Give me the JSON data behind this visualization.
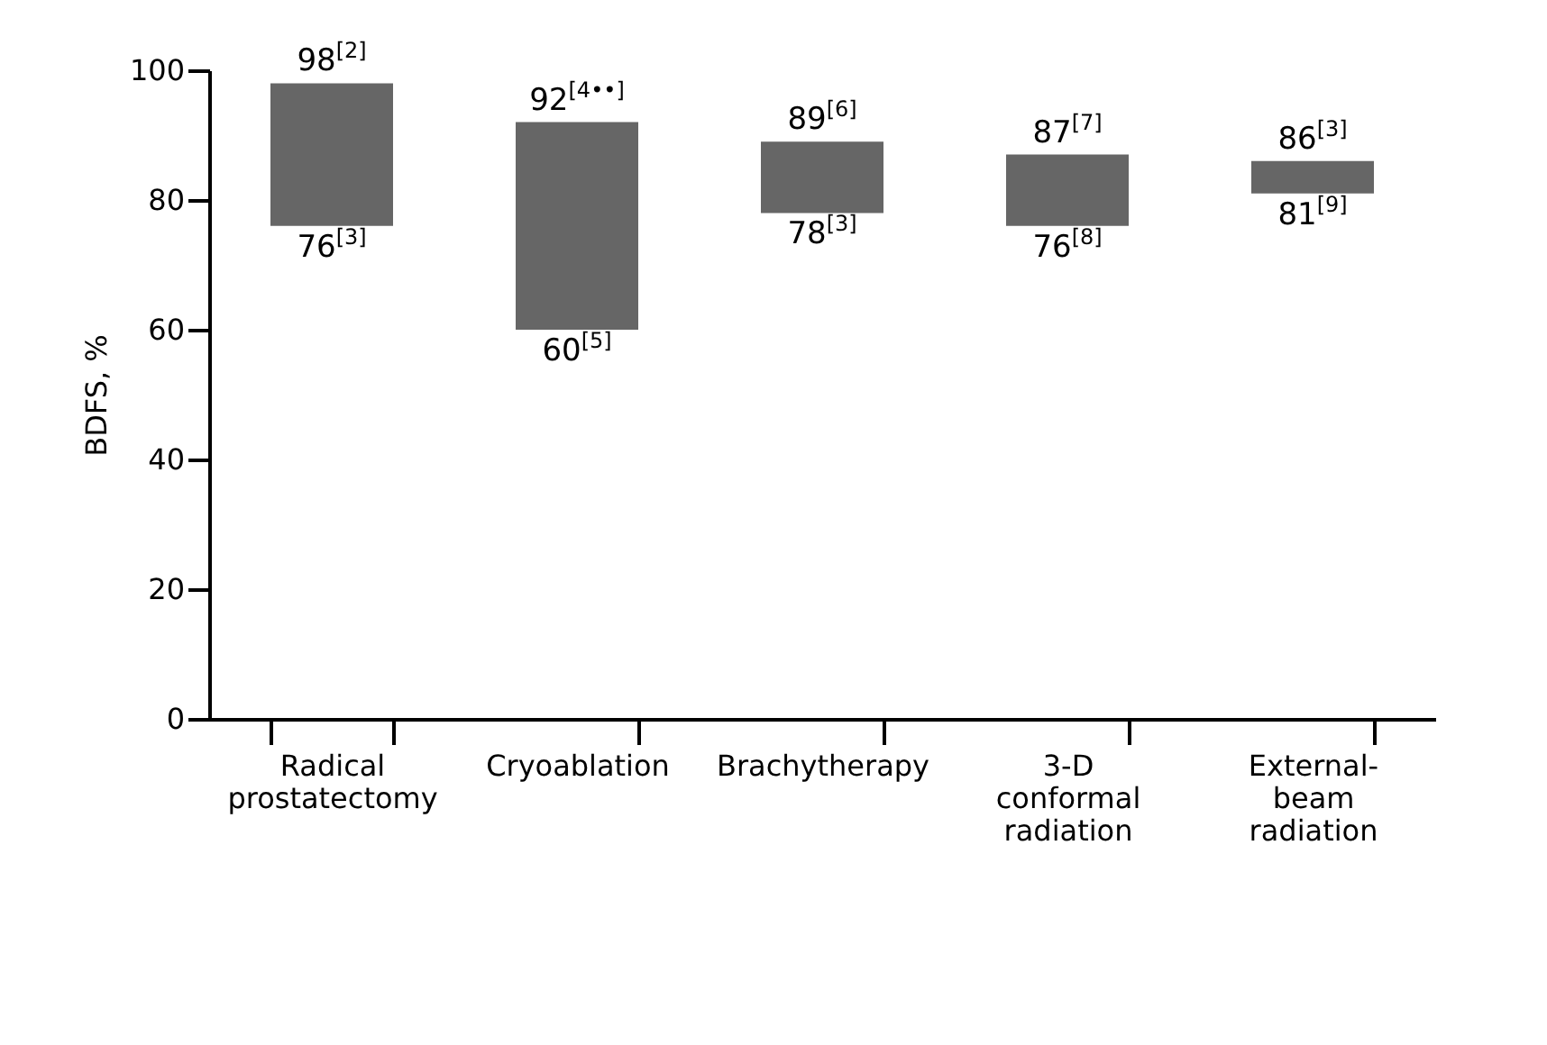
{
  "chart_data": {
    "type": "bar",
    "ylabel": "BDFS, %",
    "categories": [
      "Radical prostatectomy",
      "Cryoablation",
      "Brachytherapy",
      "3-D conformal radiation",
      "External-beam radiation"
    ],
    "base": [
      76,
      60,
      78,
      76,
      81
    ],
    "values": [
      22,
      32,
      11,
      11,
      5
    ],
    "color": "#666666",
    "ylim": [
      0,
      100
    ],
    "yticks": [
      0,
      20,
      40,
      60,
      80,
      100
    ],
    "grid": false,
    "annotations": [
      {
        "text": "98$^{[2]}$",
        "x": "Radical prostatectomy",
        "y": 98
      },
      {
        "text": "76$^{[3]}$",
        "x": "Radical prostatectomy",
        "y": 76
      },
      {
        "text": "92$^{[4••]}$",
        "x": "Cryoablation",
        "y": 92
      },
      {
        "text": "60$^{[5]}$",
        "x": "Cryoablation",
        "y": 60
      },
      {
        "text": "89$^{[6]}$",
        "x": "Brachytherapy",
        "y": 89
      },
      {
        "text": "78$^{[3]}$",
        "x": "Brachytherapy",
        "y": 78
      },
      {
        "text": "87$^{[7]}$",
        "x": "3-D conformal radiation",
        "y": 87
      },
      {
        "text": "76$^{[8]}$",
        "x": "3-D conformal radiation",
        "y": 76
      },
      {
        "text": "86$^{[3]}$",
        "x": "External-beam radiation",
        "y": 86
      },
      {
        "text": "81$^{[9]}$",
        "x": "External-beam radiation",
        "y": 81
      }
    ]
  }
}
